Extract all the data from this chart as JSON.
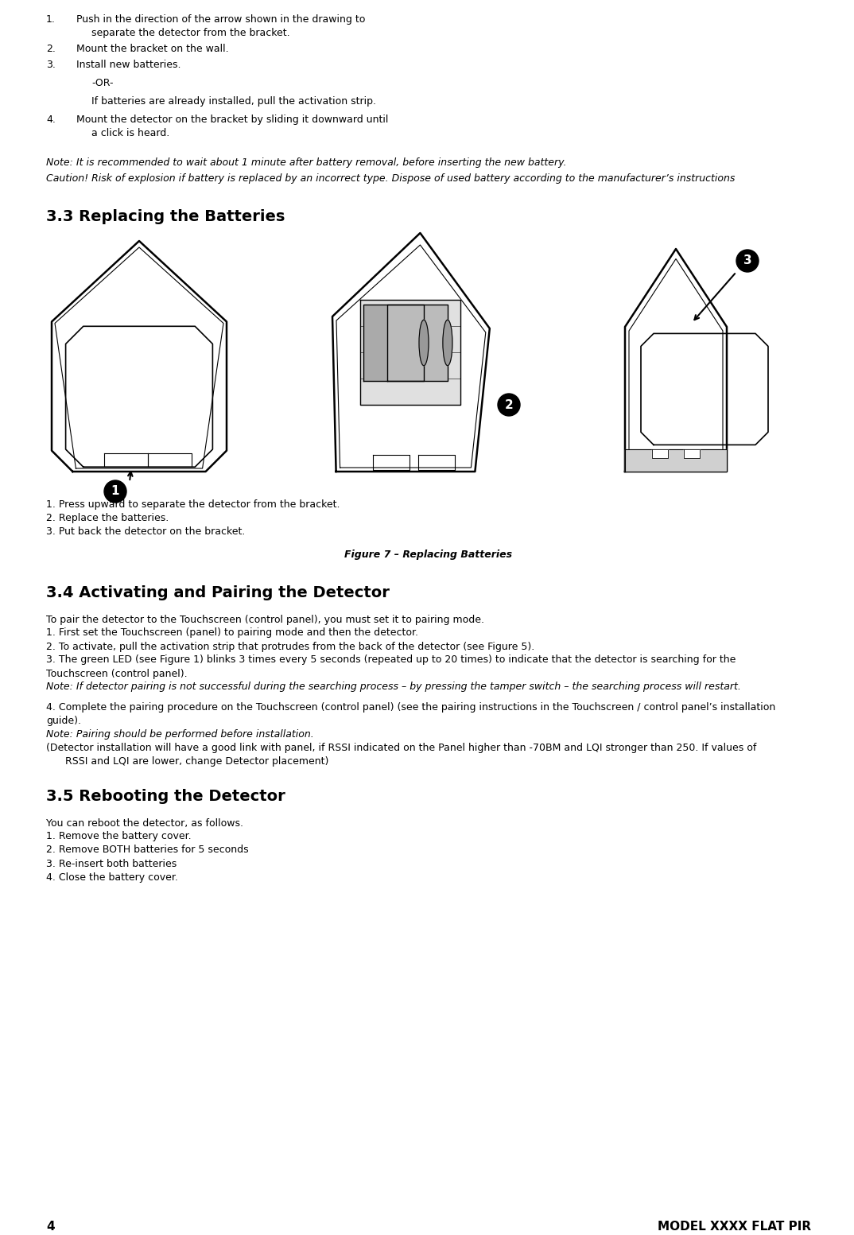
{
  "title_page_number": "4",
  "title_model": "MODEL XXXX FLAT PIR",
  "background_color": "#ffffff",
  "note1": "Note: It is recommended to wait about 1 minute after battery removal, before inserting the new battery.",
  "note2": "Caution! Risk of explosion if battery is replaced by an incorrect type. Dispose of used battery according to the manufacturer’s instructions",
  "section33_title": "3.3 Replacing the Batteries",
  "fig_caption_steps": [
    "1. Press upward to separate the detector from the bracket.",
    "2. Replace the batteries.",
    "3. Put back the detector on the bracket."
  ],
  "figure_caption": "Figure 7 – Replacing Batteries",
  "section34_title": "3.4 Activating and Pairing the Detector",
  "section34_lines": [
    {
      "text": "",
      "style": "normal",
      "indent": 0
    },
    {
      "text": "To pair the detector to the Touchscreen (control panel), you must set it to pairing mode.",
      "style": "normal",
      "indent": 0
    },
    {
      "text": "1. First set the Touchscreen (panel) to pairing mode and then the detector.",
      "style": "normal",
      "indent": 0
    },
    {
      "text": "2. To activate, pull the activation strip that protrudes from the back of the detector (see Figure 5).",
      "style": "normal",
      "indent": 0
    },
    {
      "text": "3. The green LED (see Figure 1) blinks 3 times every 5 seconds (repeated up to 20 times) to indicate that the detector is searching for the",
      "style": "normal",
      "indent": 0
    },
    {
      "text": "Touchscreen (control panel).",
      "style": "normal",
      "indent": 0
    },
    {
      "text": "Note: If detector pairing is not successful during the searching process – by pressing the tamper switch – the searching process will restart.",
      "style": "italic",
      "indent": 0
    },
    {
      "text": "",
      "style": "normal",
      "indent": 0
    },
    {
      "text": "4. Complete the pairing procedure on the Touchscreen (control panel) (see the pairing instructions in the Touchscreen / control panel’s installation",
      "style": "normal",
      "indent": 0
    },
    {
      "text": "guide).",
      "style": "normal",
      "indent": 0
    },
    {
      "text": "Note: Pairing should be performed before installation.",
      "style": "italic",
      "indent": 0
    },
    {
      "text": "(Detector installation will have a good link with panel, if RSSI indicated on the Panel higher than -70BM and LQI stronger than 250. If values of",
      "style": "normal",
      "indent": 0
    },
    {
      "text": "      RSSI and LQI are lower, change Detector placement)",
      "style": "normal",
      "indent": 0
    }
  ],
  "section35_title": "3.5 Rebooting the Detector",
  "section35_lines": [
    {
      "text": "",
      "style": "normal"
    },
    {
      "text": "You can reboot the detector, as follows.",
      "style": "normal"
    },
    {
      "text": "1. Remove the battery cover.",
      "style": "normal"
    },
    {
      "text": "2. Remove BOTH batteries for 5 seconds",
      "style": "normal"
    },
    {
      "text": "3. Re-insert both batteries",
      "style": "normal"
    },
    {
      "text": "4. Close the battery cover.",
      "style": "normal"
    }
  ]
}
